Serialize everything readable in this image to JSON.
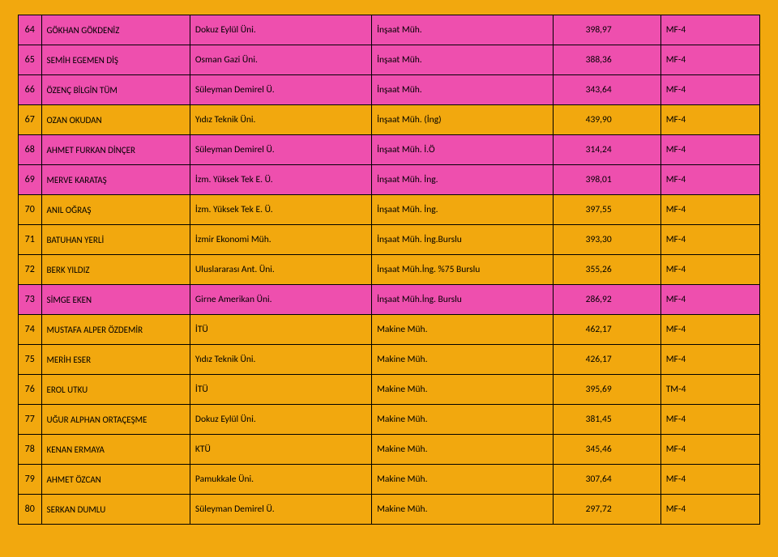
{
  "background_color": "#f2a80e",
  "highlight_color": "#ee4fae",
  "border_color": "#000000",
  "rows": [
    {
      "num": "64",
      "name": "GÖKHAN GÖKDENİZ",
      "uni": "Dokuz Eylül Üni.",
      "dept": "İnşaat Müh.",
      "score": "398,97",
      "code": "MF-4",
      "hl": true
    },
    {
      "num": "65",
      "name": "SEMİH EGEMEN DİŞ",
      "uni": "Osman Gazi Üni.",
      "dept": "İnşaat Müh.",
      "score": "388,36",
      "code": "MF-4",
      "hl": true
    },
    {
      "num": "66",
      "name": "ÖZENÇ BİLGİN TÜM",
      "uni": "Süleyman Demirel Ü.",
      "dept": "İnşaat Müh.",
      "score": "343,64",
      "code": "MF-4",
      "hl": true
    },
    {
      "num": "67",
      "name": "OZAN OKUDAN",
      "uni": "Yıdız Teknik Üni.",
      "dept": "İnşaat Müh. (İng)",
      "score": "439,90",
      "code": "MF-4",
      "hl": false
    },
    {
      "num": "68",
      "name": "AHMET FURKAN DİNÇER",
      "uni": "Süleyman Demirel Ü.",
      "dept": "İnşaat Müh. İ.Ö",
      "score": "314,24",
      "code": "MF-4",
      "hl": true
    },
    {
      "num": "69",
      "name": "MERVE KARATAŞ",
      "uni": "İzm. Yüksek Tek E. Ü.",
      "dept": "İnşaat Müh. İng.",
      "score": "398,01",
      "code": "MF-4",
      "hl": true
    },
    {
      "num": "70",
      "name": "ANIL OĞRAŞ",
      "uni": "İzm. Yüksek Tek E. Ü.",
      "dept": "İnşaat Müh. İng.",
      "score": "397,55",
      "code": "MF-4",
      "hl": false
    },
    {
      "num": "71",
      "name": "BATUHAN YERLİ",
      "uni": "İzmir Ekonomi Müh.",
      "dept": "İnşaat Müh. İng.Burslu",
      "score": "393,30",
      "code": "MF-4",
      "hl": false
    },
    {
      "num": "72",
      "name": "BERK YILDIZ",
      "uni": "Uluslararası Ant. Üni.",
      "dept": "İnşaat Müh.İng. %75 Burslu",
      "score": "355,26",
      "code": "MF-4",
      "hl": false
    },
    {
      "num": "73",
      "name": "SİMGE EKEN",
      "uni": "Girne Amerikan Üni.",
      "dept": "İnşaat Müh.İng. Burslu",
      "score": "286,92",
      "code": "MF-4",
      "hl": true
    },
    {
      "num": "74",
      "name": "MUSTAFA ALPER ÖZDEMİR",
      "uni": "İTÜ",
      "dept": "Makine Müh.",
      "score": "462,17",
      "code": "MF-4",
      "hl": false
    },
    {
      "num": "75",
      "name": "MERİH ESER",
      "uni": "Yıdız Teknik Üni.",
      "dept": "Makine Müh.",
      "score": "426,17",
      "code": "MF-4",
      "hl": false
    },
    {
      "num": "76",
      "name": "EROL UTKU",
      "uni": "İTÜ",
      "dept": "Makine Müh.",
      "score": "395,69",
      "code": "TM-4",
      "hl": false
    },
    {
      "num": "77",
      "name": "UĞUR ALPHAN ORTAÇEŞME",
      "uni": "Dokuz Eylül Üni.",
      "dept": "Makine Müh.",
      "score": "381,45",
      "code": "MF-4",
      "hl": false
    },
    {
      "num": "78",
      "name": "KENAN ERMAYA",
      "uni": "KTÜ",
      "dept": "Makine Müh.",
      "score": "345,46",
      "code": "MF-4",
      "hl": false
    },
    {
      "num": "79",
      "name": "AHMET ÖZCAN",
      "uni": "Pamukkale Üni.",
      "dept": "Makine Müh.",
      "score": "307,64",
      "code": "MF-4",
      "hl": false
    },
    {
      "num": "80",
      "name": "SERKAN DUMLU",
      "uni": "Süleyman Demirel Ü.",
      "dept": "Makine Müh.",
      "score": "297,72",
      "code": "MF-4",
      "hl": false
    }
  ]
}
